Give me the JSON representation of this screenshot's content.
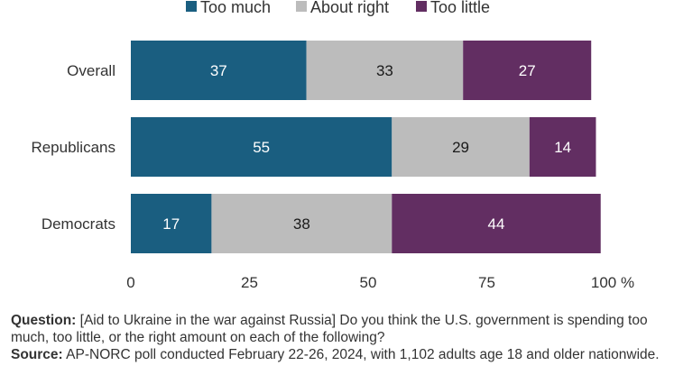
{
  "chart_data": {
    "type": "bar",
    "orientation": "horizontal",
    "stacked": true,
    "categories": [
      "Overall",
      "Republicans",
      "Democrats"
    ],
    "series": [
      {
        "name": "Too much",
        "color": "#1a5e80",
        "label_color": "#ffffff",
        "values": [
          37,
          55,
          17
        ]
      },
      {
        "name": "About right",
        "color": "#bcbcbc",
        "label_color": "#1a1a1a",
        "values": [
          33,
          29,
          38
        ]
      },
      {
        "name": "Too little",
        "color": "#622e62",
        "label_color": "#ffffff",
        "values": [
          27,
          14,
          44
        ]
      }
    ],
    "xlim": [
      0,
      100
    ],
    "xticks": [
      0,
      25,
      50,
      75,
      100
    ],
    "x_unit": "%",
    "legend": "top-center",
    "grid": false
  },
  "notes": {
    "question_label": "Question:",
    "question_text": "[Aid to Ukraine in the war against Russia] Do you think the U.S. government is spending too much, too little, or the right amount on each of the following?",
    "source_label": "Source:",
    "source_text": "AP-NORC poll conducted February 22-26, 2024, with 1,102 adults age 18 and older nationwide."
  }
}
